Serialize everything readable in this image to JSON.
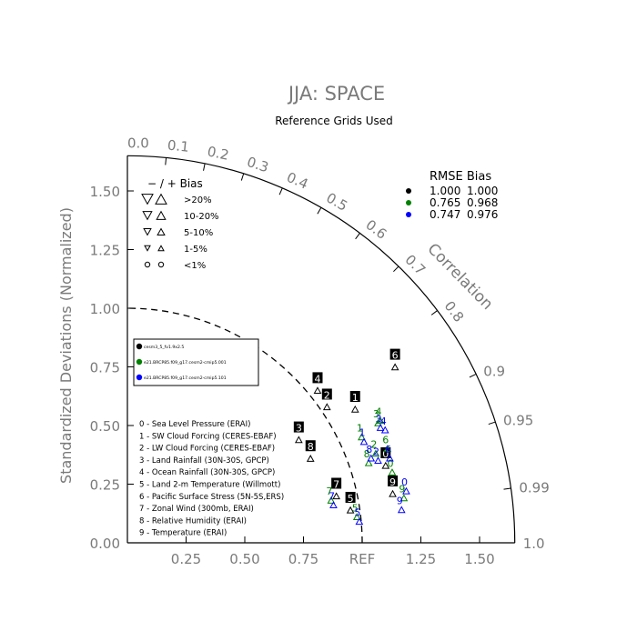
{
  "chart_data": {
    "type": "scatter",
    "subtype": "taylor-diagram",
    "title": "JJA: SPACE",
    "subtitle": "Reference Grids Used",
    "ylabel": "Standardized Deviations (Normalized)",
    "ref_label": "REF",
    "correlation_label": "Correlation",
    "max_sd": 1.65,
    "x_ticks": [
      "0.25",
      "0.50",
      "0.75",
      "1.25",
      "1.50"
    ],
    "y_ticks": [
      "0.00",
      "0.25",
      "0.50",
      "0.75",
      "1.00",
      "1.25",
      "1.50"
    ],
    "corr_labels": [
      "0.0",
      "0.1",
      "0.2",
      "0.3",
      "0.4",
      "0.5",
      "0.6",
      "0.7",
      "0.8",
      "0.9",
      "0.95",
      "0.99",
      "1.0"
    ],
    "bias_legend": {
      "header": "−  /  +     Bias",
      "rows": [
        {
          "label": ">20%",
          "size": 1.0
        },
        {
          "label": "10-20%",
          "size": 0.8
        },
        {
          "label": "5-10%",
          "size": 0.65
        },
        {
          "label": "1-5%",
          "size": 0.5
        },
        {
          "label": "<1%",
          "size": 0.45,
          "circle": true
        }
      ]
    },
    "rmse_table": {
      "header": "RMSE Bias",
      "rows": [
        {
          "color": "#000000",
          "rmse": "1.000",
          "bias": "1.000"
        },
        {
          "color": "#008000",
          "rmse": "0.765",
          "bias": "0.968"
        },
        {
          "color": "#0000ff",
          "rmse": "0.747",
          "bias": "0.976"
        }
      ]
    },
    "case_legend": [
      {
        "color": "#000000",
        "name": "cesm3_5_fv1.9x2.5"
      },
      {
        "color": "#008000",
        "name": "e21.BRCP85.f09_g17.cesm2-cmip5.001"
      },
      {
        "color": "#0000ff",
        "name": "e21.BRCP85.f09_g17.cesm2-cmip5.101"
      }
    ],
    "variables": [
      "0 - Sea Level Pressure (ERAI)",
      "1 - SW Cloud Forcing (CERES-EBAF)",
      "2 - LW Cloud Forcing (CERES-EBAF)",
      "3 - Land Rainfall (30N-30S, GPCP)",
      "4 - Ocean Rainfall (30N-30S, GPCP)",
      "5 - Land 2-m Temperature (Willmott)",
      "6 - Pacific Surface Stress (5N-5S,ERS)",
      "7 - Zonal Wind (300mb, ERAI)",
      "8 - Relative Humidity (ERAI)",
      "9 - Temperature (ERAI)"
    ],
    "series": [
      {
        "name": "cesm3_5_fv1.9x2.5",
        "color": "#000000",
        "points": [
          {
            "id": "0",
            "x": 1.1,
            "y": 0.38
          },
          {
            "id": "1",
            "x": 0.97,
            "y": 0.62
          },
          {
            "id": "2",
            "x": 0.85,
            "y": 0.63
          },
          {
            "id": "3",
            "x": 0.73,
            "y": 0.49
          },
          {
            "id": "4",
            "x": 0.81,
            "y": 0.7
          },
          {
            "id": "5",
            "x": 0.95,
            "y": 0.19
          },
          {
            "id": "6",
            "x": 1.14,
            "y": 0.8
          },
          {
            "id": "7",
            "x": 0.89,
            "y": 0.25
          },
          {
            "id": "8",
            "x": 0.78,
            "y": 0.41
          },
          {
            "id": "9",
            "x": 1.13,
            "y": 0.26
          }
        ]
      },
      {
        "name": "e21.BRCP85.f09_g17.cesm2-cmip5.001",
        "color": "#008000",
        "points": [
          {
            "id": "0",
            "x": 1.12,
            "y": 0.34
          },
          {
            "id": "1",
            "x": 0.99,
            "y": 0.49
          },
          {
            "id": "2",
            "x": 1.05,
            "y": 0.42
          },
          {
            "id": "3",
            "x": 1.06,
            "y": 0.55
          },
          {
            "id": "4",
            "x": 1.07,
            "y": 0.56
          },
          {
            "id": "5",
            "x": 0.97,
            "y": 0.15
          },
          {
            "id": "6",
            "x": 1.1,
            "y": 0.44
          },
          {
            "id": "7",
            "x": 0.86,
            "y": 0.22
          },
          {
            "id": "8",
            "x": 1.02,
            "y": 0.38
          },
          {
            "id": "9",
            "x": 1.17,
            "y": 0.23
          }
        ]
      },
      {
        "name": "e21.BRCP85.f09_g17.cesm2-cmip5.101",
        "color": "#0000ff",
        "points": [
          {
            "id": "0",
            "x": 1.18,
            "y": 0.26
          },
          {
            "id": "1",
            "x": 1.0,
            "y": 0.47
          },
          {
            "id": "2",
            "x": 1.06,
            "y": 0.39
          },
          {
            "id": "3",
            "x": 1.07,
            "y": 0.53
          },
          {
            "id": "4",
            "x": 1.09,
            "y": 0.52
          },
          {
            "id": "5",
            "x": 0.98,
            "y": 0.13
          },
          {
            "id": "6",
            "x": 1.11,
            "y": 0.4
          },
          {
            "id": "7",
            "x": 0.87,
            "y": 0.2
          },
          {
            "id": "8",
            "x": 1.03,
            "y": 0.4
          },
          {
            "id": "9",
            "x": 1.16,
            "y": 0.18
          }
        ]
      }
    ]
  }
}
